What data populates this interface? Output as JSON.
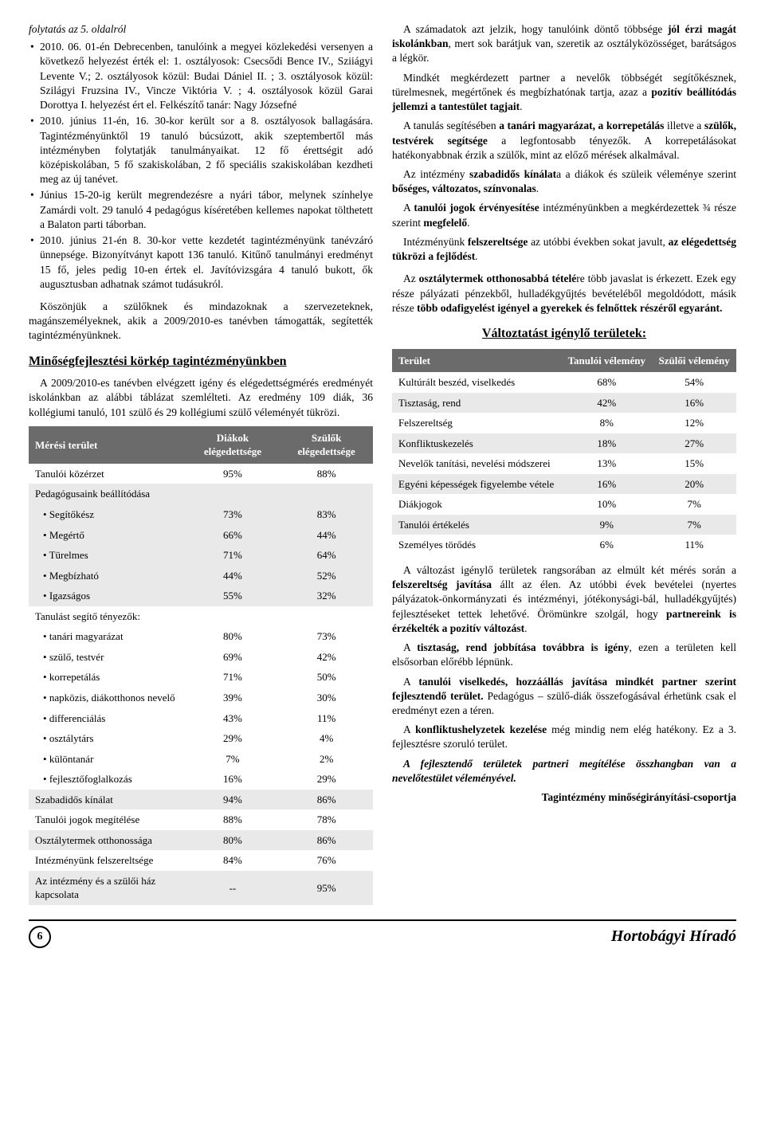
{
  "cont_note": "folytatás az 5. oldalról",
  "left_bullets": [
    "2010. 06. 01-én Debrecenben, tanulóink a megyei közlekedési versenyen a következő helyezést érték el: 1. osztályosok: Csecsődi Bence IV., Sziiágyi Levente V.; 2. osztályosok közül: Budai Dániel II. ; 3. osztályosok közül: Szilágyi Fruzsina IV., Vincze Viktória V. ; 4. osztályosok közül Garai Dorottya I. helyezést ért el. Felkészítő tanár: Nagy Józsefné",
    "2010. június 11-én, 16. 30-kor került sor a 8. osztályosok ballagására. Tagintézményünktől 19 tanuló búcsúzott, akik szeptembertől más intézményben folytatják tanulmányaikat. 12 fő érettségit adó középiskolában, 5 fő szakiskolában, 2 fő speciális szakiskolában kezdheti meg az új tanévet.",
    "Június 15-20-ig került megrendezésre a nyári tábor, melynek színhelye Zamárdi volt. 29 tanuló 4 pedagógus kíséretében kellemes napokat tölthetett a Balaton parti táborban.",
    "2010. június 21-én 8. 30-kor vette kezdetét tagintézményünk tanévzáró ünnepsége. Bizonyítványt kapott 136 tanuló. Kitűnő tanulmányi eredményt 15 fő, jeles pedig 10-en értek el. Javítóvizsgára 4 tanuló bukott, ők augusztusban adhatnak számot tudásukról."
  ],
  "left_para": "Köszönjük a szülőknek és mindazoknak a szervezeteknek, magánszemélyeknek, akik a 2009/2010-es tanévben támogatták, segítették tagintézményünknek.",
  "left_h2": "Minőségfejlesztési körkép tagintézményünkben",
  "left_intro": "A 2009/2010-es tanévben elvégzett igény és elégedettségmérés eredményét iskolánkban az alábbi táblázat szemlélteti. Az eredmény 109 diák, 36 kollégiumi tanuló, 101 szülő és 29 kollégiumi szülő véleményét tükrözi.",
  "t1": {
    "headers": [
      "Mérési terület",
      "Diákok elégedettsége",
      "Szülők elégedettsége"
    ],
    "rows": [
      {
        "label": "Tanulói közérzet",
        "c1": "95%",
        "c2": "88%",
        "cls": "even"
      },
      {
        "label": "Pedagógusaink beállítódása",
        "c1": "",
        "c2": "",
        "cls": "odd",
        "header": true
      },
      {
        "label": "Segítőkész",
        "c1": "73%",
        "c2": "83%",
        "cls": "odd",
        "sub": true
      },
      {
        "label": "Megértő",
        "c1": "66%",
        "c2": "44%",
        "cls": "odd",
        "sub": true
      },
      {
        "label": "Türelmes",
        "c1": "71%",
        "c2": "64%",
        "cls": "odd",
        "sub": true
      },
      {
        "label": "Megbízható",
        "c1": "44%",
        "c2": "52%",
        "cls": "odd",
        "sub": true
      },
      {
        "label": "Igazságos",
        "c1": "55%",
        "c2": "32%",
        "cls": "odd",
        "sub": true
      },
      {
        "label": "Tanulást segítő tényezők:",
        "c1": "",
        "c2": "",
        "cls": "even",
        "header": true
      },
      {
        "label": "tanári magyarázat",
        "c1": "80%",
        "c2": "73%",
        "cls": "even",
        "sub": true
      },
      {
        "label": "szülő, testvér",
        "c1": "69%",
        "c2": "42%",
        "cls": "even",
        "sub": true
      },
      {
        "label": "korrepetálás",
        "c1": "71%",
        "c2": "50%",
        "cls": "even",
        "sub": true
      },
      {
        "label": "napközis, diákotthonos nevelő",
        "c1": "39%",
        "c2": "30%",
        "cls": "even",
        "sub": true
      },
      {
        "label": "differenciálás",
        "c1": "43%",
        "c2": "11%",
        "cls": "even",
        "sub": true
      },
      {
        "label": "osztálytárs",
        "c1": "29%",
        "c2": "4%",
        "cls": "even",
        "sub": true
      },
      {
        "label": "különtanár",
        "c1": "7%",
        "c2": "2%",
        "cls": "even",
        "sub": true
      },
      {
        "label": "fejlesztőfoglalkozás",
        "c1": "16%",
        "c2": "29%",
        "cls": "even",
        "sub": true
      },
      {
        "label": "Szabadidős kínálat",
        "c1": "94%",
        "c2": "86%",
        "cls": "odd"
      },
      {
        "label": "Tanulói jogok megítélése",
        "c1": "88%",
        "c2": "78%",
        "cls": "even"
      },
      {
        "label": "Osztálytermek otthonossága",
        "c1": "80%",
        "c2": "86%",
        "cls": "odd"
      },
      {
        "label": "Intézményünk felszereltsége",
        "c1": "84%",
        "c2": "76%",
        "cls": "even"
      },
      {
        "label": "Az intézmény és a szülői ház kapcsolata",
        "c1": "--",
        "c2": "95%",
        "cls": "odd"
      }
    ]
  },
  "right_paras": [
    {
      "text": "A számadatok azt jelzik, hogy tanulóink döntő többsége <b>jól érzi magát iskolánkban</b>, mert sok barátjuk van, szeretik az osztályközösséget, barátságos a légkör."
    },
    {
      "text": "Mindkét megkérdezett partner a nevelők többségét segítőkésznek, türelmesnek, megértőnek és megbízhatónak tartja, azaz a <b>pozitív beállítódás jellemzi a tantestület tagjait</b>."
    },
    {
      "text": "A tanulás segítésében <b>a tanári magyarázat, a korrepetálás</b> illetve a <b>szülők, testvérek segítsége</b> a legfontosabb tényezők. A korrepetálásokat hatékonyabbnak érzik a szülők, mint az előző mérések alkalmával."
    },
    {
      "text": "Az intézmény <b>szabadidős kínálat</b>a a diákok és szüleik véleménye szerint <b>bőséges, változatos, színvonalas</b>."
    },
    {
      "text": "A <b>tanulói jogok érvényesítése</b> intézményünkben a megkérdezettek ¾ része szerint <b>megfelelő</b>."
    },
    {
      "text": "Intézményünk <b>felszereltsége</b> az utóbbi években sokat javult, <b>az elégedettség tükrözi a fejlődést</b>."
    },
    {
      "text": "Az <b>osztálytermek otthonosabbá tételé</b>re több javaslat is érkezett. Ezek egy része pályázati pénzekből, hulladékgyűjtés bevételéből megoldódott, másik része <b>több odafigyelést igényel a gyerekek és felnőttek részéről egyaránt.</b>",
      "gap": true
    }
  ],
  "right_h2": "Változtatást igénylő területek:",
  "t2": {
    "headers": [
      "Terület",
      "Tanulói vélemény",
      "Szülői vélemény"
    ],
    "rows": [
      {
        "label": "Kultúrált beszéd, viselkedés",
        "c1": "68%",
        "c2": "54%",
        "cls": "even"
      },
      {
        "label": "Tisztaság, rend",
        "c1": "42%",
        "c2": "16%",
        "cls": "odd"
      },
      {
        "label": "Felszereltség",
        "c1": "8%",
        "c2": "12%",
        "cls": "even"
      },
      {
        "label": "Konfliktuskezelés",
        "c1": "18%",
        "c2": "27%",
        "cls": "odd"
      },
      {
        "label": "Nevelők tanítási, nevelési módszerei",
        "c1": "13%",
        "c2": "15%",
        "cls": "even"
      },
      {
        "label": "Egyéni képességek figyelembe vétele",
        "c1": "16%",
        "c2": "20%",
        "cls": "odd"
      },
      {
        "label": "Diákjogok",
        "c1": "10%",
        "c2": "7%",
        "cls": "even"
      },
      {
        "label": "Tanulói értékelés",
        "c1": "9%",
        "c2": "7%",
        "cls": "odd"
      },
      {
        "label": "Személyes törődés",
        "c1": "6%",
        "c2": "11%",
        "cls": "even"
      }
    ]
  },
  "right_after": [
    {
      "text": "A változást igénylő területek rangsorában az elmúlt két mérés során a <b>felszereltség javítása</b> állt az élen. Az utóbbi évek bevételei (nyertes pályázatok-önkormányzati és intézményi, jótékonysági-bál, hulladékgyűjtés) fejlesztéseket tettek lehetővé. Örömünkre szolgál, hogy <b>partnereink is érzékelték a pozitív változást</b>."
    },
    {
      "text": "A <b>tisztaság, rend jobbítása továbbra is igény</b>, ezen a területen kell elsősorban előrébb lépnünk."
    },
    {
      "text": "A <b>tanulói viselkedés, hozzáállás javítása mindkét partner szerint fejlesztendő terület.</b> Pedagógus – szülő-diák összefogásával érhetünk csak el eredményt ezen a téren."
    },
    {
      "text": "A <b>konfliktushelyzetek kezelése</b> még mindig nem elég hatékony. Ez a 3. fejlesztésre szoruló terület."
    },
    {
      "text": "<i><b>A fejlesztendő területek partneri megítélése összhangban van a nevelőtestület véleményével.</b></i>"
    }
  ],
  "signature": "Tagintézmény minőségirányítási-csoportja",
  "page_number": "6",
  "publication": "Hortobágyi Híradó"
}
